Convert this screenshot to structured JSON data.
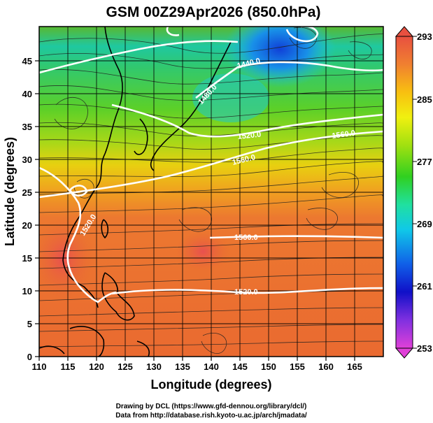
{
  "title": "GSM 00Z29Apr2026 (850.0hPa)",
  "x_axis": {
    "label": "Longitude (degrees)",
    "ticks": [
      "110",
      "115",
      "120",
      "125",
      "130",
      "135",
      "140",
      "145",
      "150",
      "155",
      "160",
      "165"
    ]
  },
  "y_axis": {
    "label": "Latitude  (degrees)",
    "ticks": [
      "0",
      "5",
      "10",
      "15",
      "20",
      "25",
      "30",
      "35",
      "40",
      "45"
    ]
  },
  "colorbar": {
    "ticks": [
      "253",
      "261",
      "269",
      "277",
      "285",
      "293"
    ],
    "colors": [
      "#e040d8",
      "#8030e0",
      "#1010c8",
      "#1060e8",
      "#10c8e8",
      "#20e0a0",
      "#30d020",
      "#a0e010",
      "#f0f010",
      "#f8c010",
      "#f08030",
      "#e85040"
    ]
  },
  "contour_labels": [
    "1560.0",
    "1520.0",
    "1520.0",
    "1560.0",
    "1520.0",
    "1560.0",
    "1440.0",
    "1480.0"
  ],
  "credits": [
    "Drawing by DCL (https://www.gfd-dennou.org/library/dcl/)",
    "Data from http://database.rish.kyoto-u.ac.jp/arch/jmadata/"
  ],
  "map_data": {
    "lon_range": [
      110,
      170
    ],
    "lat_range": [
      0,
      50
    ],
    "grid_step": 2.5,
    "temperature_field": "850hPa temperature (K), 253–293",
    "contour_interval": 40
  }
}
